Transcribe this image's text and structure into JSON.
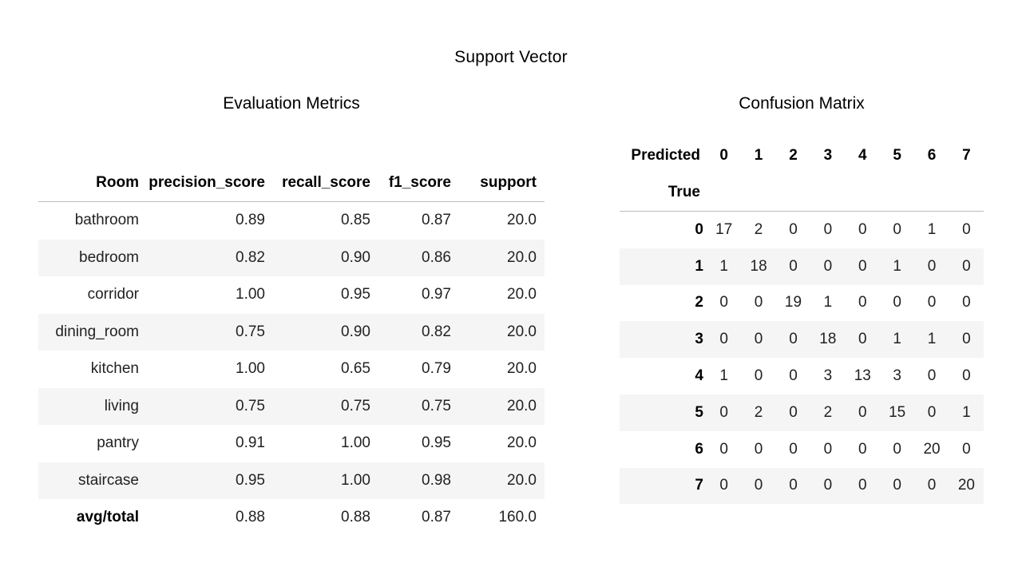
{
  "title": "Support  Vector",
  "metrics": {
    "title": "Evaluation Metrics",
    "columns": [
      "Room",
      "precision_score",
      "recall_score",
      "f1_score",
      "support"
    ],
    "rows": [
      [
        "bathroom",
        "0.89",
        "0.85",
        "0.87",
        "20.0"
      ],
      [
        "bedroom",
        "0.82",
        "0.90",
        "0.86",
        "20.0"
      ],
      [
        "corridor",
        "1.00",
        "0.95",
        "0.97",
        "20.0"
      ],
      [
        "dining_room",
        "0.75",
        "0.90",
        "0.82",
        "20.0"
      ],
      [
        "kitchen",
        "1.00",
        "0.65",
        "0.79",
        "20.0"
      ],
      [
        "living",
        "0.75",
        "0.75",
        "0.75",
        "20.0"
      ],
      [
        "pantry",
        "0.91",
        "1.00",
        "0.95",
        "20.0"
      ],
      [
        "staircase",
        "0.95",
        "1.00",
        "0.98",
        "20.0"
      ],
      [
        "avg/total",
        "0.88",
        "0.88",
        "0.87",
        "160.0"
      ]
    ]
  },
  "confusion": {
    "title": "Confusion Matrix",
    "predicted_label": "Predicted",
    "true_label": "True",
    "columns": [
      "0",
      "1",
      "2",
      "3",
      "4",
      "5",
      "6",
      "7"
    ],
    "rows": [
      [
        "0",
        "17",
        "2",
        "0",
        "0",
        "0",
        "0",
        "1",
        "0"
      ],
      [
        "1",
        "1",
        "18",
        "0",
        "0",
        "0",
        "1",
        "0",
        "0"
      ],
      [
        "2",
        "0",
        "0",
        "19",
        "1",
        "0",
        "0",
        "0",
        "0"
      ],
      [
        "3",
        "0",
        "0",
        "0",
        "18",
        "0",
        "1",
        "1",
        "0"
      ],
      [
        "4",
        "1",
        "0",
        "0",
        "3",
        "13",
        "3",
        "0",
        "0"
      ],
      [
        "5",
        "0",
        "2",
        "0",
        "2",
        "0",
        "15",
        "0",
        "1"
      ],
      [
        "6",
        "0",
        "0",
        "0",
        "0",
        "0",
        "0",
        "20",
        "0"
      ],
      [
        "7",
        "0",
        "0",
        "0",
        "0",
        "0",
        "0",
        "0",
        "20"
      ]
    ]
  }
}
